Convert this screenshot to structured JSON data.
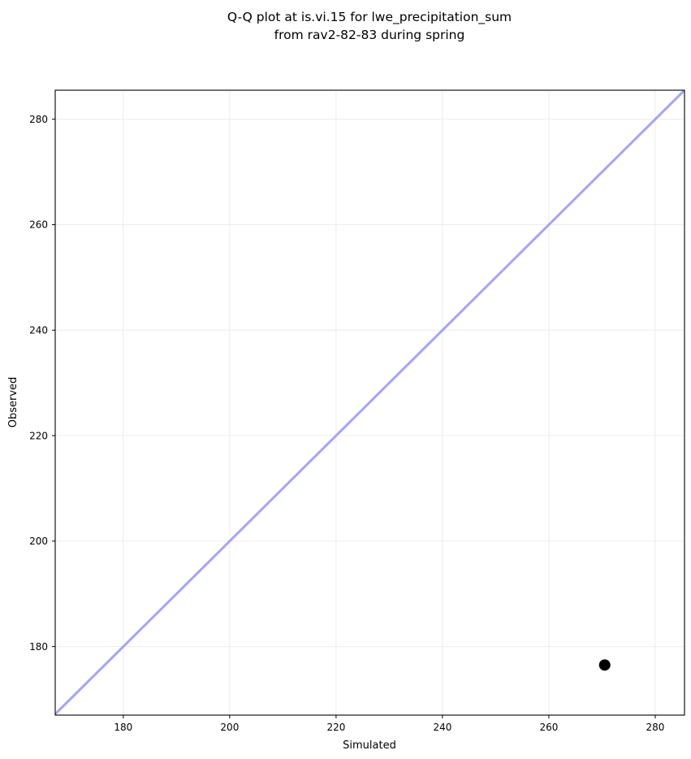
{
  "chart_data": {
    "type": "scatter",
    "title": "Q-Q plot at is.vi.15 for lwe_precipitation_sum\nfrom rav2-82-83 during spring",
    "title_lines": [
      "Q-Q plot at is.vi.15 for lwe_precipitation_sum",
      "from rav2-82-83 during spring"
    ],
    "xlabel": "Simulated",
    "ylabel": "Observed",
    "xlim": [
      167.2,
      285.5
    ],
    "ylim": [
      167.0,
      285.5
    ],
    "xticks": [
      180,
      200,
      220,
      240,
      260,
      280
    ],
    "yticks": [
      180,
      200,
      220,
      240,
      260,
      280
    ],
    "grid": true,
    "legend": null,
    "series": [
      {
        "name": "identity-line",
        "type": "line",
        "color": "#a5a5f5",
        "line_width": 3,
        "points": [
          [
            167.0,
            167.0
          ],
          [
            285.5,
            285.5
          ]
        ]
      },
      {
        "name": "qq-points",
        "type": "scatter",
        "color": "#000000",
        "marker": "circle",
        "marker_radius": 7,
        "points": [
          [
            270.5,
            176.5
          ]
        ]
      }
    ],
    "colors": {
      "background": "#ffffff",
      "grid": "#ececec",
      "spine": "#000000",
      "tick_label": "#000000"
    }
  }
}
